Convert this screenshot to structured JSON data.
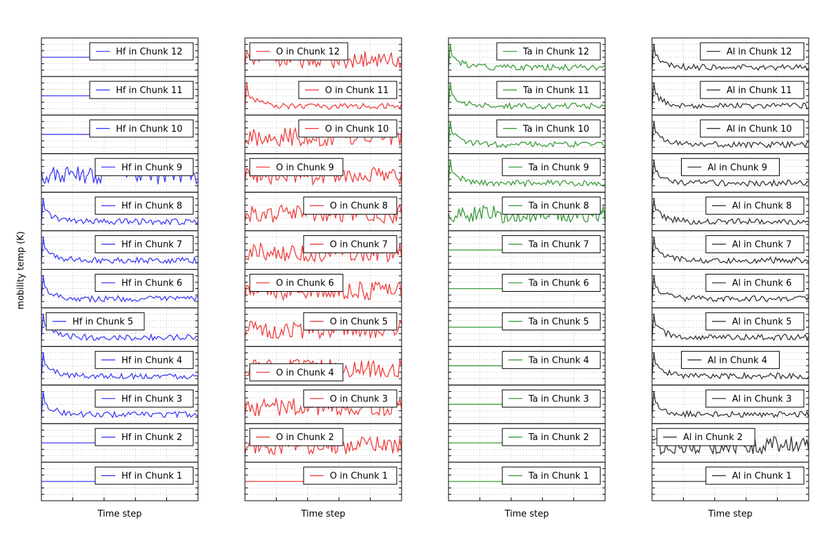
{
  "chart_data": {
    "type": "line",
    "ylabel": "mobility temp (K)",
    "xlabel": "Time step",
    "grid": true,
    "columns": [
      {
        "element": "Hf",
        "color": "#3b3bf5",
        "chunks": [
          {
            "chunk": 12,
            "label": "Hf in Chunk 12",
            "legend": "right",
            "shape": "flat",
            "flat_level": 0.5
          },
          {
            "chunk": 11,
            "label": "Hf in Chunk 11",
            "legend": "right",
            "shape": "flat",
            "flat_level": 0.5
          },
          {
            "chunk": 10,
            "label": "Hf in Chunk 10",
            "legend": "right",
            "shape": "flat",
            "flat_level": 0.5
          },
          {
            "chunk": 9,
            "label": "Hf in Chunk 9",
            "legend": "right",
            "shape": "noisy"
          },
          {
            "chunk": 8,
            "label": "Hf in Chunk 8",
            "legend": "right",
            "shape": "decay"
          },
          {
            "chunk": 7,
            "label": "Hf in Chunk 7",
            "legend": "right",
            "shape": "decay"
          },
          {
            "chunk": 6,
            "label": "Hf in Chunk 6",
            "legend": "right",
            "shape": "decay"
          },
          {
            "chunk": 5,
            "label": "Hf in Chunk 5",
            "legend": "left",
            "shape": "decay"
          },
          {
            "chunk": 4,
            "label": "Hf in Chunk 4",
            "legend": "right",
            "shape": "decay"
          },
          {
            "chunk": 3,
            "label": "Hf in Chunk 3",
            "legend": "right",
            "shape": "decay"
          },
          {
            "chunk": 2,
            "label": "Hf in Chunk 2",
            "legend": "right",
            "shape": "flat",
            "flat_level": 0.5
          },
          {
            "chunk": 1,
            "label": "Hf in Chunk 1",
            "legend": "right",
            "shape": "flat",
            "flat_level": 0.5
          }
        ]
      },
      {
        "element": "O",
        "color": "#f03c3c",
        "chunks": [
          {
            "chunk": 12,
            "label": "O in Chunk 12",
            "legend": "left",
            "shape": "noisy"
          },
          {
            "chunk": 11,
            "label": "O in Chunk 11",
            "legend": "right",
            "shape": "decay"
          },
          {
            "chunk": 10,
            "label": "O in Chunk 10",
            "legend": "right",
            "shape": "noisy"
          },
          {
            "chunk": 9,
            "label": "O in Chunk 9",
            "legend": "left",
            "shape": "noisy"
          },
          {
            "chunk": 8,
            "label": "O in Chunk 8",
            "legend": "right",
            "shape": "noisy"
          },
          {
            "chunk": 7,
            "label": "O in Chunk 7",
            "legend": "right",
            "shape": "noisy"
          },
          {
            "chunk": 6,
            "label": "O in Chunk 6",
            "legend": "left",
            "shape": "noisy"
          },
          {
            "chunk": 5,
            "label": "O in Chunk 5",
            "legend": "right",
            "shape": "noisy"
          },
          {
            "chunk": 4,
            "label": "O in Chunk 4",
            "legend": "left-low",
            "shape": "noisy"
          },
          {
            "chunk": 3,
            "label": "O in Chunk 3",
            "legend": "right",
            "shape": "noisy"
          },
          {
            "chunk": 2,
            "label": "O in Chunk 2",
            "legend": "left",
            "shape": "noisy"
          },
          {
            "chunk": 1,
            "label": "O in Chunk 1",
            "legend": "right",
            "shape": "flat",
            "flat_level": 0.5
          }
        ]
      },
      {
        "element": "Ta",
        "color": "#3a9a3a",
        "chunks": [
          {
            "chunk": 12,
            "label": "Ta in Chunk 12",
            "legend": "right",
            "shape": "decay"
          },
          {
            "chunk": 11,
            "label": "Ta in Chunk 11",
            "legend": "right",
            "shape": "decay"
          },
          {
            "chunk": 10,
            "label": "Ta in Chunk 10",
            "legend": "right",
            "shape": "decay"
          },
          {
            "chunk": 9,
            "label": "Ta in Chunk 9",
            "legend": "right",
            "shape": "decay"
          },
          {
            "chunk": 8,
            "label": "Ta in Chunk 8",
            "legend": "right",
            "shape": "noisy"
          },
          {
            "chunk": 7,
            "label": "Ta in Chunk 7",
            "legend": "right",
            "shape": "flat",
            "flat_level": 0.5
          },
          {
            "chunk": 6,
            "label": "Ta in Chunk 6",
            "legend": "right",
            "shape": "flat",
            "flat_level": 0.5
          },
          {
            "chunk": 5,
            "label": "Ta in Chunk 5",
            "legend": "right",
            "shape": "flat",
            "flat_level": 0.5
          },
          {
            "chunk": 4,
            "label": "Ta in Chunk 4",
            "legend": "right",
            "shape": "flat",
            "flat_level": 0.5
          },
          {
            "chunk": 3,
            "label": "Ta in Chunk 3",
            "legend": "right",
            "shape": "flat",
            "flat_level": 0.5
          },
          {
            "chunk": 2,
            "label": "Ta in Chunk 2",
            "legend": "right",
            "shape": "flat",
            "flat_level": 0.5
          },
          {
            "chunk": 1,
            "label": "Ta in Chunk 1",
            "legend": "right",
            "shape": "flat",
            "flat_level": 0.5
          }
        ]
      },
      {
        "element": "Al",
        "color": "#333333",
        "chunks": [
          {
            "chunk": 12,
            "label": "Al in Chunk 12",
            "legend": "right",
            "shape": "decay"
          },
          {
            "chunk": 11,
            "label": "Al in Chunk 11",
            "legend": "right",
            "shape": "decay"
          },
          {
            "chunk": 10,
            "label": "Al in Chunk 10",
            "legend": "right",
            "shape": "decay"
          },
          {
            "chunk": 9,
            "label": "Al in Chunk 9",
            "legend": "center",
            "shape": "decay"
          },
          {
            "chunk": 8,
            "label": "Al in Chunk 8",
            "legend": "right",
            "shape": "decay"
          },
          {
            "chunk": 7,
            "label": "Al in Chunk 7",
            "legend": "right",
            "shape": "decay"
          },
          {
            "chunk": 6,
            "label": "Al in Chunk 6",
            "legend": "right",
            "shape": "decay"
          },
          {
            "chunk": 5,
            "label": "Al in Chunk 5",
            "legend": "right",
            "shape": "decay"
          },
          {
            "chunk": 4,
            "label": "Al in Chunk 4",
            "legend": "center",
            "shape": "decay"
          },
          {
            "chunk": 3,
            "label": "Al in Chunk 3",
            "legend": "right",
            "shape": "decay"
          },
          {
            "chunk": 2,
            "label": "Al in Chunk 2",
            "legend": "left",
            "shape": "noisy"
          },
          {
            "chunk": 1,
            "label": "Al in Chunk 1",
            "legend": "right",
            "shape": "flat",
            "flat_level": 0.5
          }
        ]
      }
    ]
  }
}
